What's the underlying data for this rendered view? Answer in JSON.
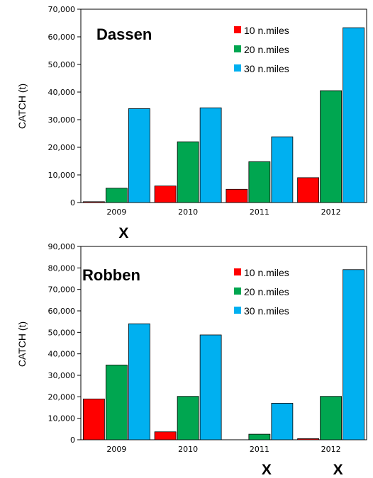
{
  "chart_data": [
    {
      "type": "bar",
      "title": "Dassen",
      "ylabel": "CATCH (t)",
      "xlabel": "",
      "categories": [
        "2009",
        "2010",
        "2011",
        "2012"
      ],
      "ylim": [
        0,
        70000
      ],
      "yticks": [
        "0",
        "10,000",
        "20,000",
        "30,000",
        "40,000",
        "50,000",
        "60,000",
        "70,000"
      ],
      "legend_position": "top-right",
      "series": [
        {
          "name": "10 n.miles",
          "color": "#ff0000",
          "values": [
            300,
            6000,
            4800,
            9000
          ]
        },
        {
          "name": "20 n.miles",
          "color": "#00a650",
          "values": [
            5200,
            22000,
            14800,
            40500
          ]
        },
        {
          "name": "30 n.miles",
          "color": "#00b0f0",
          "values": [
            34000,
            34300,
            23800,
            63300
          ]
        }
      ],
      "annotations": [
        {
          "category": "2009",
          "text": "X"
        }
      ]
    },
    {
      "type": "bar",
      "title": "Robben",
      "ylabel": "CATCH (t)",
      "xlabel": "",
      "categories": [
        "2009",
        "2010",
        "2011",
        "2012"
      ],
      "ylim": [
        0,
        90000
      ],
      "yticks": [
        "0",
        "10,000",
        "20,000",
        "30,000",
        "40,000",
        "50,000",
        "60,000",
        "70,000",
        "80,000",
        "90,000"
      ],
      "legend_position": "top-right",
      "series": [
        {
          "name": "10 n.miles",
          "color": "#ff0000",
          "values": [
            19000,
            3700,
            0,
            500
          ]
        },
        {
          "name": "20 n.miles",
          "color": "#00a650",
          "values": [
            34800,
            20200,
            2600,
            20200
          ]
        },
        {
          "name": "30 n.miles",
          "color": "#00b0f0",
          "values": [
            54000,
            48800,
            17000,
            79200
          ]
        }
      ],
      "annotations": [
        {
          "category": "2011",
          "text": "X"
        },
        {
          "category": "2012",
          "text": "X"
        }
      ]
    }
  ]
}
